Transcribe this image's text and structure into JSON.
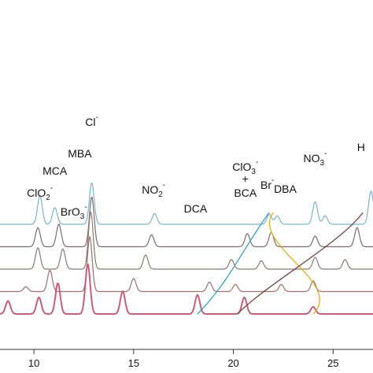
{
  "chart_data": {
    "type": "line",
    "title": "",
    "xlabel": "",
    "ylabel": "",
    "xlim": [
      8.3,
      27.0
    ],
    "grid": false,
    "legend": "none",
    "x_ticks": [
      {
        "value": 10,
        "label": "10"
      },
      {
        "value": 15,
        "label": "15"
      },
      {
        "value": 20,
        "label": "20"
      },
      {
        "value": 25,
        "label": "25"
      }
    ],
    "series": [
      {
        "color": "#7fb3c8",
        "offset": 0,
        "peaks": [
          [
            10.3,
            1.2
          ],
          [
            11.05,
            0.7
          ],
          [
            12.9,
            1.75
          ],
          [
            16.05,
            0.45
          ],
          [
            21.8,
            0.42
          ],
          [
            22.2,
            0.35
          ],
          [
            24.1,
            0.95
          ],
          [
            24.6,
            0.35
          ],
          [
            26.9,
            1.4
          ]
        ]
      },
      {
        "color": "#7a6a6a",
        "offset": 1,
        "peaks": [
          [
            10.2,
            0.8
          ],
          [
            11.25,
            0.95
          ],
          [
            12.9,
            2.1
          ],
          [
            15.9,
            0.5
          ],
          [
            20.7,
            0.55
          ],
          [
            21.9,
            0.6
          ],
          [
            24.1,
            0.45
          ],
          [
            26.2,
            0.8
          ]
        ]
      },
      {
        "color": "#8a7a70",
        "offset": 2,
        "peaks": [
          [
            10.2,
            0.9
          ],
          [
            11.45,
            0.85
          ],
          [
            12.85,
            2.4
          ],
          [
            15.6,
            0.6
          ],
          [
            19.9,
            0.4
          ],
          [
            21.4,
            0.35
          ],
          [
            24.1,
            0.5
          ],
          [
            25.6,
            0.4
          ]
        ]
      },
      {
        "color": "#9a7070",
        "offset": 3,
        "peaks": [
          [
            9.6,
            0.2
          ],
          [
            10.8,
            0.9
          ],
          [
            12.8,
            2.3
          ],
          [
            15.0,
            0.55
          ],
          [
            18.8,
            0.4
          ],
          [
            20.1,
            0.3
          ],
          [
            22.4,
            0.3
          ],
          [
            24.0,
            0.45
          ]
        ]
      },
      {
        "color": "#c0607a",
        "offset": 4,
        "peaks": [
          [
            8.7,
            0.55
          ],
          [
            10.25,
            0.7
          ],
          [
            11.2,
            1.3
          ],
          [
            12.7,
            2.1
          ],
          [
            14.45,
            0.95
          ],
          [
            18.2,
            0.8
          ],
          [
            20.55,
            0.7
          ],
          [
            24.0,
            0.3
          ]
        ]
      }
    ],
    "annotations": [
      {
        "x": 10.3,
        "label": "ClO",
        "sub": "2",
        "sup": "-"
      },
      {
        "x": 11.05,
        "label": "MCA"
      },
      {
        "x": 12.0,
        "label": "BrO",
        "sub": "3",
        "sup": "-"
      },
      {
        "x": 12.3,
        "label": "MBA"
      },
      {
        "x": 12.9,
        "label": "Cl",
        "sup": "-"
      },
      {
        "x": 16.0,
        "label": "NO",
        "sub": "2",
        "sup": "-"
      },
      {
        "x": 18.1,
        "label": "DCA"
      },
      {
        "x": 20.6,
        "label": "ClO",
        "sub": "3",
        "sup": "-"
      },
      {
        "x": 20.6,
        "label": "+"
      },
      {
        "x": 20.6,
        "label": "BCA"
      },
      {
        "x": 21.7,
        "label": "Br",
        "sup": "-"
      },
      {
        "x": 22.6,
        "label": "DBA"
      },
      {
        "x": 24.1,
        "label": "NO",
        "sub": "3",
        "sup": "-"
      },
      {
        "x": 26.4,
        "label": "H"
      }
    ],
    "tracking_lines": [
      {
        "color": "#3aa0b8",
        "from_x": 18.2,
        "to_x": 21.8
      },
      {
        "color": "#d9b020",
        "from_x": 24.0,
        "to_x": 22.0
      },
      {
        "color": "#6a4a40",
        "from_x": 20.2,
        "to_x": 26.5
      }
    ]
  }
}
